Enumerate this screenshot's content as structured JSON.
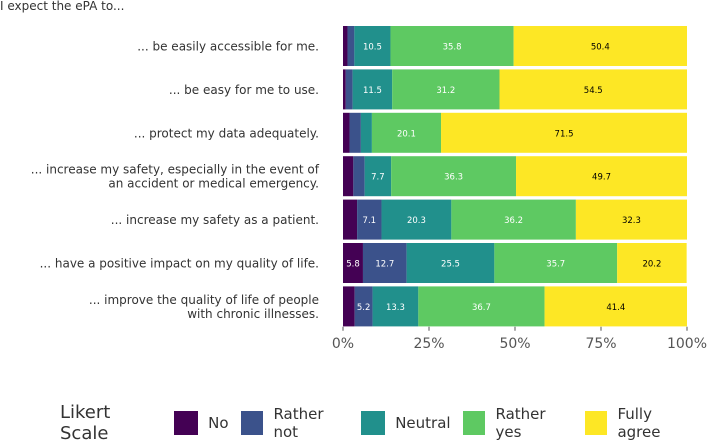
{
  "header": {
    "caption": "I expect the ePA to..."
  },
  "legend": {
    "title": "Likert Scale",
    "items": [
      {
        "label": "No",
        "color": "#440154"
      },
      {
        "label": "Rather not",
        "color": "#3b528b"
      },
      {
        "label": "Neutral",
        "color": "#21908c"
      },
      {
        "label": "Rather yes",
        "color": "#5ec962"
      },
      {
        "label": "Fully agree",
        "color": "#fde725"
      }
    ]
  },
  "chart_data": {
    "type": "bar",
    "orientation": "horizontal",
    "stacked": true,
    "xlim": [
      0,
      100
    ],
    "xticks": [
      "0%",
      "25%",
      "50%",
      "75%",
      "100%"
    ],
    "categories": [
      [
        "... be easily accessible for me."
      ],
      [
        "... be easy for me to use."
      ],
      [
        "... protect my data adequately."
      ],
      [
        "... increase my safety, especially in the event of",
        "an accident or medical emergency."
      ],
      [
        "... increase my safety as a patient."
      ],
      [
        "... have a positive impact on my quality of life."
      ],
      [
        "... improve the quality of life of people",
        "with chronic illnesses."
      ]
    ],
    "series": [
      {
        "name": "No",
        "values": [
          1.3,
          0.8,
          1.9,
          3.0,
          4.1,
          5.8,
          3.4
        ]
      },
      {
        "name": "Rather not",
        "values": [
          2.0,
          2.0,
          3.3,
          3.3,
          7.1,
          12.7,
          5.2
        ]
      },
      {
        "name": "Neutral",
        "values": [
          10.5,
          11.5,
          3.2,
          7.7,
          20.3,
          25.5,
          13.3
        ]
      },
      {
        "name": "Rather yes",
        "values": [
          35.8,
          31.2,
          20.1,
          36.3,
          36.2,
          35.7,
          36.7
        ]
      },
      {
        "name": "Fully agree",
        "values": [
          50.4,
          54.5,
          71.5,
          49.7,
          32.3,
          20.2,
          41.4
        ]
      }
    ],
    "labels": [
      [
        "",
        "",
        "10.5",
        "35.8",
        "50.4"
      ],
      [
        "",
        "",
        "11.5",
        "31.2",
        "54.5"
      ],
      [
        "",
        "",
        "",
        "20.1",
        "71.5"
      ],
      [
        "",
        "",
        "7.7",
        "36.3",
        "49.7"
      ],
      [
        "",
        "7.1",
        "20.3",
        "36.2",
        "32.3"
      ],
      [
        "5.8",
        "12.7",
        "25.5",
        "35.7",
        "20.2"
      ],
      [
        "",
        "5.2",
        "13.3",
        "36.7",
        "41.4"
      ]
    ],
    "label_colors": [
      "#ffffff",
      "#ffffff",
      "#ffffff",
      "#ffffff",
      "#000000"
    ]
  }
}
